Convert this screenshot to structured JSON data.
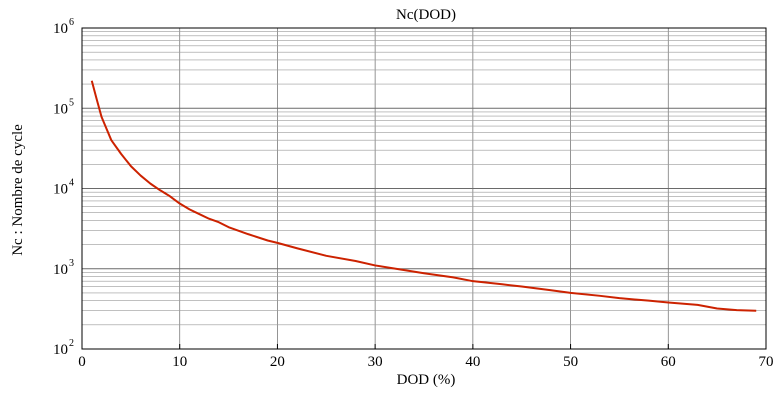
{
  "chart_data": {
    "type": "line",
    "title": "Nc(DOD)",
    "xlabel": "DOD (%)",
    "ylabel": "Nc : Nombre de cycle",
    "x_range": [
      0,
      70
    ],
    "y_range": [
      100,
      1000000
    ],
    "y_scale": "log",
    "grid": true,
    "x_ticks": [
      0,
      10,
      20,
      30,
      40,
      50,
      60,
      70
    ],
    "y_ticks": [
      {
        "base": "10",
        "exp": "2",
        "value": 100
      },
      {
        "base": "10",
        "exp": "3",
        "value": 1000
      },
      {
        "base": "10",
        "exp": "4",
        "value": 10000
      },
      {
        "base": "10",
        "exp": "5",
        "value": 100000
      },
      {
        "base": "10",
        "exp": "6",
        "value": 1000000
      }
    ],
    "series": [
      {
        "color": "#cc2200",
        "x": [
          1,
          1.5,
          2,
          3,
          4,
          5,
          6,
          7,
          8,
          9,
          10,
          11,
          12,
          13,
          14,
          15,
          17,
          19,
          20,
          22,
          25,
          28,
          30,
          33,
          35,
          38,
          40,
          43,
          45,
          48,
          50,
          53,
          55,
          58,
          60,
          63,
          65,
          67,
          69
        ],
        "y": [
          220000,
          130000,
          78000,
          40000,
          27000,
          19000,
          14500,
          11500,
          9500,
          8000,
          6500,
          5500,
          4800,
          4200,
          3800,
          3300,
          2700,
          2250,
          2100,
          1800,
          1450,
          1250,
          1100,
          960,
          880,
          780,
          700,
          640,
          600,
          540,
          500,
          460,
          430,
          400,
          380,
          355,
          320,
          305,
          300
        ]
      }
    ]
  }
}
